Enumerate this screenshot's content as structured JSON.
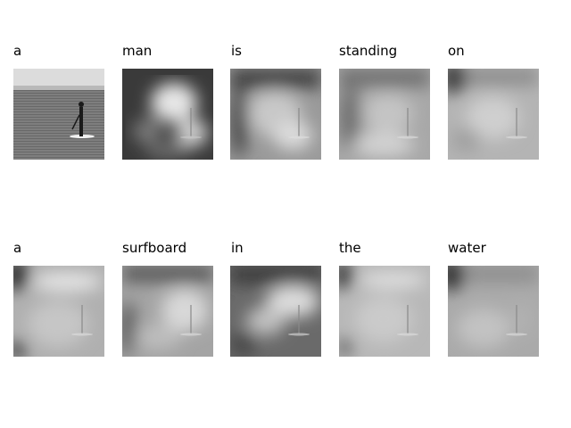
{
  "panels": [
    {
      "word": "a",
      "kind": "original"
    },
    {
      "word": "man",
      "kind": "attention"
    },
    {
      "word": "is",
      "kind": "attention"
    },
    {
      "word": "standing",
      "kind": "attention"
    },
    {
      "word": "on",
      "kind": "attention"
    },
    {
      "word": "a",
      "kind": "attention"
    },
    {
      "word": "surfboard",
      "kind": "attention"
    },
    {
      "word": "in",
      "kind": "attention"
    },
    {
      "word": "the",
      "kind": "attention"
    },
    {
      "word": "water",
      "kind": "attention"
    }
  ]
}
